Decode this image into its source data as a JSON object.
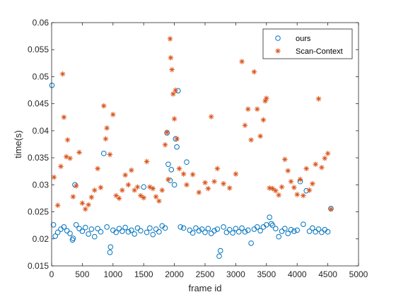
{
  "chart_data": {
    "type": "scatter",
    "xlabel": "frame id",
    "ylabel": "time(s)",
    "xlim": [
      0,
      5000
    ],
    "ylim": [
      0.015,
      0.06
    ],
    "xticks": [
      0,
      500,
      1000,
      1500,
      2000,
      2500,
      3000,
      3500,
      4000,
      4500,
      5000
    ],
    "xtick_labels": [
      "0",
      "500",
      "1000",
      "1500",
      "2000",
      "2500",
      "3000",
      "3500",
      "4000",
      "4500",
      "5000"
    ],
    "yticks": [
      0.015,
      0.02,
      0.025,
      0.03,
      0.035,
      0.04,
      0.045,
      0.05,
      0.055,
      0.06
    ],
    "ytick_labels": [
      "0.015",
      "0.02",
      "0.025",
      "0.03",
      "0.035",
      "0.04",
      "0.045",
      "0.05",
      "0.055",
      "0.06"
    ],
    "grid": false,
    "legend_position": "top-right",
    "series": [
      {
        "name": "ours",
        "marker": "circle",
        "color": "#0072BD",
        "points": [
          [
            5,
            0.0484
          ],
          [
            30,
            0.0226
          ],
          [
            60,
            0.0205
          ],
          [
            100,
            0.0212
          ],
          [
            150,
            0.0218
          ],
          [
            200,
            0.0222
          ],
          [
            250,
            0.0215
          ],
          [
            300,
            0.021
          ],
          [
            340,
            0.0198
          ],
          [
            350,
            0.0201
          ],
          [
            380,
            0.03
          ],
          [
            400,
            0.0226
          ],
          [
            450,
            0.0219
          ],
          [
            500,
            0.0214
          ],
          [
            550,
            0.0221
          ],
          [
            600,
            0.0209
          ],
          [
            650,
            0.0218
          ],
          [
            700,
            0.0204
          ],
          [
            750,
            0.0219
          ],
          [
            800,
            0.0213
          ],
          [
            850,
            0.0358
          ],
          [
            900,
            0.0222
          ],
          [
            950,
            0.0175
          ],
          [
            960,
            0.0185
          ],
          [
            1000,
            0.0216
          ],
          [
            1050,
            0.0212
          ],
          [
            1100,
            0.0219
          ],
          [
            1150,
            0.0214
          ],
          [
            1200,
            0.0221
          ],
          [
            1250,
            0.0213
          ],
          [
            1300,
            0.0216
          ],
          [
            1350,
            0.0209
          ],
          [
            1400,
            0.022
          ],
          [
            1450,
            0.0215
          ],
          [
            1500,
            0.0296
          ],
          [
            1550,
            0.0212
          ],
          [
            1600,
            0.022
          ],
          [
            1650,
            0.0208
          ],
          [
            1700,
            0.0218
          ],
          [
            1750,
            0.0213
          ],
          [
            1800,
            0.0224
          ],
          [
            1850,
            0.022
          ],
          [
            1880,
            0.0396
          ],
          [
            1900,
            0.0338
          ],
          [
            1930,
            0.0308
          ],
          [
            1950,
            0.0328
          ],
          [
            2000,
            0.03
          ],
          [
            2020,
            0.0385
          ],
          [
            2040,
            0.037
          ],
          [
            2060,
            0.0474
          ],
          [
            2100,
            0.0222
          ],
          [
            2150,
            0.022
          ],
          [
            2200,
            0.0342
          ],
          [
            2250,
            0.0216
          ],
          [
            2300,
            0.0211
          ],
          [
            2350,
            0.022
          ],
          [
            2400,
            0.0215
          ],
          [
            2450,
            0.0218
          ],
          [
            2500,
            0.0212
          ],
          [
            2550,
            0.0219
          ],
          [
            2600,
            0.021
          ],
          [
            2650,
            0.0215
          ],
          [
            2700,
            0.0218
          ],
          [
            2730,
            0.0168
          ],
          [
            2750,
            0.0178
          ],
          [
            2800,
            0.0222
          ],
          [
            2850,
            0.0212
          ],
          [
            2900,
            0.0217
          ],
          [
            2950,
            0.0211
          ],
          [
            3000,
            0.0219
          ],
          [
            3050,
            0.0213
          ],
          [
            3100,
            0.022
          ],
          [
            3150,
            0.0213
          ],
          [
            3200,
            0.0216
          ],
          [
            3250,
            0.0192
          ],
          [
            3300,
            0.0218
          ],
          [
            3350,
            0.0222
          ],
          [
            3400,
            0.0215
          ],
          [
            3450,
            0.0222
          ],
          [
            3500,
            0.0226
          ],
          [
            3550,
            0.024
          ],
          [
            3580,
            0.0228
          ],
          [
            3600,
            0.0225
          ],
          [
            3650,
            0.0219
          ],
          [
            3700,
            0.0204
          ],
          [
            3750,
            0.0214
          ],
          [
            3800,
            0.0219
          ],
          [
            3850,
            0.021
          ],
          [
            3900,
            0.0217
          ],
          [
            3950,
            0.0214
          ],
          [
            4000,
            0.0216
          ],
          [
            4050,
            0.0306
          ],
          [
            4100,
            0.0227
          ],
          [
            4150,
            0.0289
          ],
          [
            4200,
            0.0214
          ],
          [
            4250,
            0.022
          ],
          [
            4300,
            0.0213
          ],
          [
            4350,
            0.0218
          ],
          [
            4400,
            0.0212
          ],
          [
            4450,
            0.0217
          ],
          [
            4500,
            0.0213
          ],
          [
            4550,
            0.0256
          ]
        ]
      },
      {
        "name": "Scan-Context",
        "marker": "asterisk",
        "color": "#D95319",
        "points": [
          [
            40,
            0.0314
          ],
          [
            100,
            0.0262
          ],
          [
            150,
            0.0334
          ],
          [
            180,
            0.0505
          ],
          [
            200,
            0.0425
          ],
          [
            240,
            0.0352
          ],
          [
            260,
            0.0383
          ],
          [
            300,
            0.0349
          ],
          [
            350,
            0.0278
          ],
          [
            400,
            0.0298
          ],
          [
            450,
            0.036
          ],
          [
            500,
            0.0266
          ],
          [
            550,
            0.0255
          ],
          [
            600,
            0.0263
          ],
          [
            650,
            0.0277
          ],
          [
            700,
            0.029
          ],
          [
            750,
            0.033
          ],
          [
            800,
            0.0295
          ],
          [
            850,
            0.0446
          ],
          [
            880,
            0.0385
          ],
          [
            900,
            0.0405
          ],
          [
            950,
            0.0356
          ],
          [
            1000,
            0.043
          ],
          [
            1050,
            0.028
          ],
          [
            1100,
            0.0275
          ],
          [
            1150,
            0.029
          ],
          [
            1200,
            0.0318
          ],
          [
            1250,
            0.03
          ],
          [
            1300,
            0.0327
          ],
          [
            1350,
            0.029
          ],
          [
            1400,
            0.0296
          ],
          [
            1450,
            0.028
          ],
          [
            1500,
            0.0276
          ],
          [
            1550,
            0.0343
          ],
          [
            1600,
            0.0296
          ],
          [
            1650,
            0.0293
          ],
          [
            1700,
            0.0278
          ],
          [
            1750,
            0.027
          ],
          [
            1800,
            0.029
          ],
          [
            1850,
            0.0374
          ],
          [
            1880,
            0.0397
          ],
          [
            1900,
            0.031
          ],
          [
            1930,
            0.057
          ],
          [
            1940,
            0.0535
          ],
          [
            1960,
            0.0513
          ],
          [
            1980,
            0.0468
          ],
          [
            2000,
            0.0422
          ],
          [
            2020,
            0.0475
          ],
          [
            2040,
            0.0385
          ],
          [
            2080,
            0.033
          ],
          [
            2150,
            0.032
          ],
          [
            2200,
            0.03
          ],
          [
            2300,
            0.0319
          ],
          [
            2400,
            0.0286
          ],
          [
            2500,
            0.0304
          ],
          [
            2550,
            0.0293
          ],
          [
            2600,
            0.0426
          ],
          [
            2650,
            0.0306
          ],
          [
            2700,
            0.033
          ],
          [
            2800,
            0.0302
          ],
          [
            2900,
            0.0294
          ],
          [
            3000,
            0.032
          ],
          [
            3100,
            0.0528
          ],
          [
            3150,
            0.041
          ],
          [
            3200,
            0.044
          ],
          [
            3250,
            0.0383
          ],
          [
            3300,
            0.0509
          ],
          [
            3350,
            0.044
          ],
          [
            3400,
            0.039
          ],
          [
            3450,
            0.042
          ],
          [
            3480,
            0.0455
          ],
          [
            3500,
            0.046
          ],
          [
            3550,
            0.0294
          ],
          [
            3600,
            0.0293
          ],
          [
            3650,
            0.0289
          ],
          [
            3700,
            0.0281
          ],
          [
            3750,
            0.0296
          ],
          [
            3800,
            0.0347
          ],
          [
            3850,
            0.0326
          ],
          [
            3900,
            0.0306
          ],
          [
            3950,
            0.0295
          ],
          [
            4000,
            0.0282
          ],
          [
            4050,
            0.031
          ],
          [
            4100,
            0.028
          ],
          [
            4150,
            0.033
          ],
          [
            4200,
            0.029
          ],
          [
            4250,
            0.0302
          ],
          [
            4300,
            0.0338
          ],
          [
            4350,
            0.0459
          ],
          [
            4400,
            0.0332
          ],
          [
            4450,
            0.0349
          ],
          [
            4500,
            0.0358
          ],
          [
            4550,
            0.0255
          ]
        ]
      }
    ]
  }
}
